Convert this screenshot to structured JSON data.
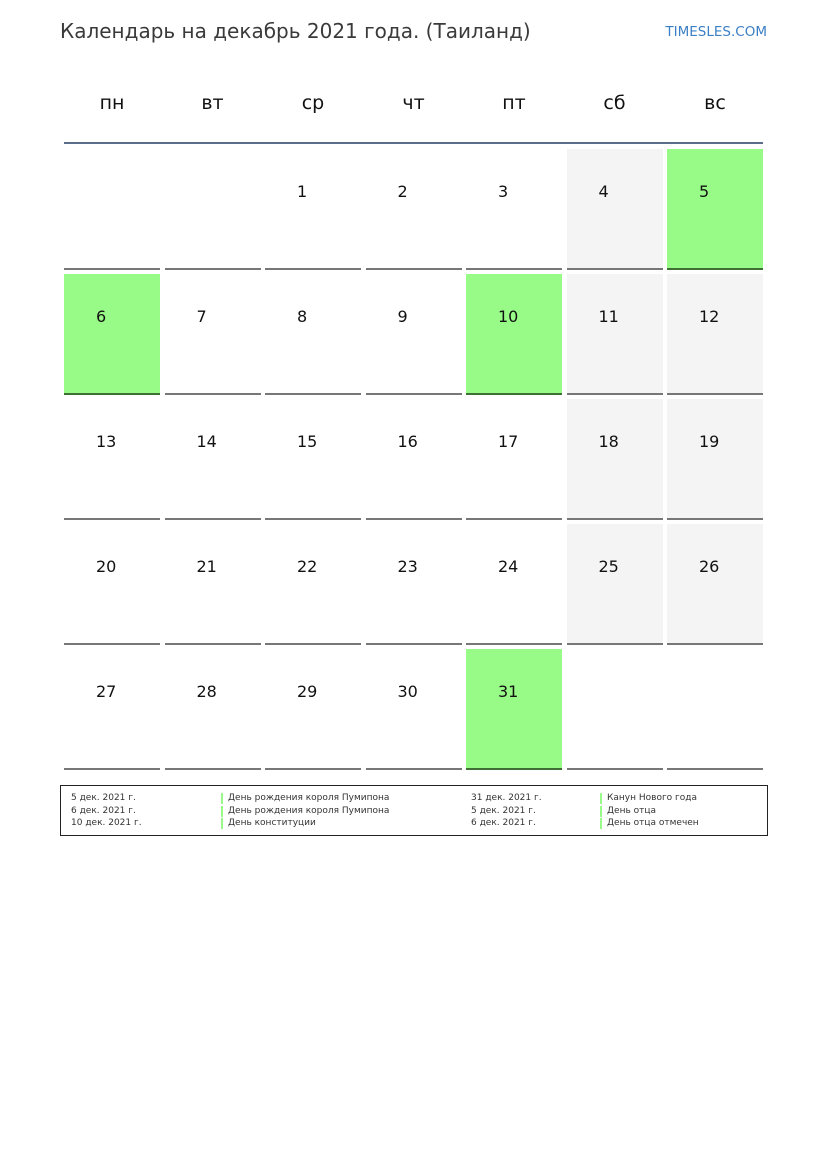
{
  "header": {
    "title": "Календарь на декабрь 2021 года. (Таиланд)",
    "brand": "TIMESLES.COM"
  },
  "colors": {
    "holiday": "#99fb87",
    "weekend": "#f4f4f4",
    "rule": "#5a6e8c"
  },
  "weekdays": [
    "пн",
    "вт",
    "ср",
    "чт",
    "пт",
    "сб",
    "вс"
  ],
  "weeks": [
    [
      null,
      null,
      "1",
      "2",
      "3",
      "4",
      "5"
    ],
    [
      "6",
      "7",
      "8",
      "9",
      "10",
      "11",
      "12"
    ],
    [
      "13",
      "14",
      "15",
      "16",
      "17",
      "18",
      "19"
    ],
    [
      "20",
      "21",
      "22",
      "23",
      "24",
      "25",
      "26"
    ],
    [
      "27",
      "28",
      "29",
      "30",
      "31",
      null,
      null
    ]
  ],
  "holiday_days": [
    "5",
    "6",
    "10",
    "31"
  ],
  "legend": [
    {
      "date": "5 дек. 2021 г.",
      "name": "День рождения короля Пумипона"
    },
    {
      "date": "6 дек. 2021 г.",
      "name": "День рождения короля Пумипона"
    },
    {
      "date": "10 дек. 2021 г.",
      "name": "День конституции"
    },
    {
      "date": "31 дек. 2021 г.",
      "name": "Канун Нового года"
    },
    {
      "date": "5 дек. 2021 г.",
      "name": "День отца"
    },
    {
      "date": "6 дек. 2021 г.",
      "name": "День отца отмечен"
    }
  ]
}
